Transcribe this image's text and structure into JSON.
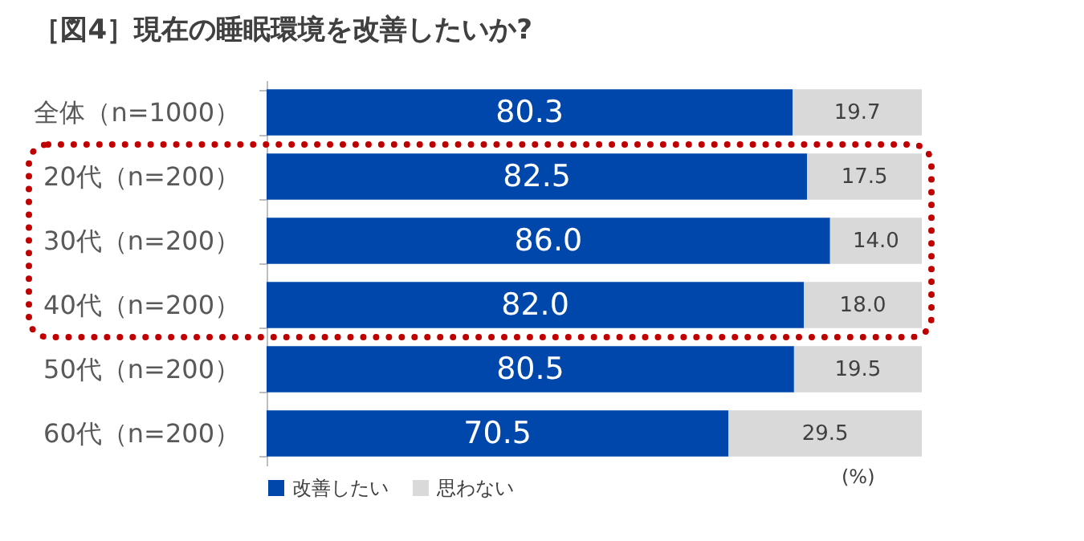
{
  "chart_data": {
    "type": "bar",
    "orientation": "horizontal",
    "stacked": true,
    "title": "［図4］現在の睡眠環境を改善したいか?",
    "categories": [
      "全体（n=1000）",
      "20代（n=200）",
      "30代（n=200）",
      "40代（n=200）",
      "50代（n=200）",
      "60代（n=200）"
    ],
    "series": [
      {
        "name": "改善したい",
        "color": "#0047ab",
        "values": [
          80.3,
          82.5,
          86.0,
          82.0,
          80.5,
          70.5
        ],
        "value_labels": [
          "80.3",
          "82.5",
          "86.0",
          "82.0",
          "80.5",
          "70.5"
        ]
      },
      {
        "name": "思わない",
        "color": "#d9d9d9",
        "values": [
          19.7,
          17.5,
          14.0,
          18.0,
          19.5,
          29.5
        ],
        "value_labels": [
          "19.7",
          "17.5",
          "14.0",
          "18.0",
          "19.5",
          "29.5"
        ]
      }
    ],
    "xlim": [
      0,
      100
    ],
    "legend": "bottom left",
    "grid": false,
    "annotations": [
      "(%)"
    ]
  }
}
